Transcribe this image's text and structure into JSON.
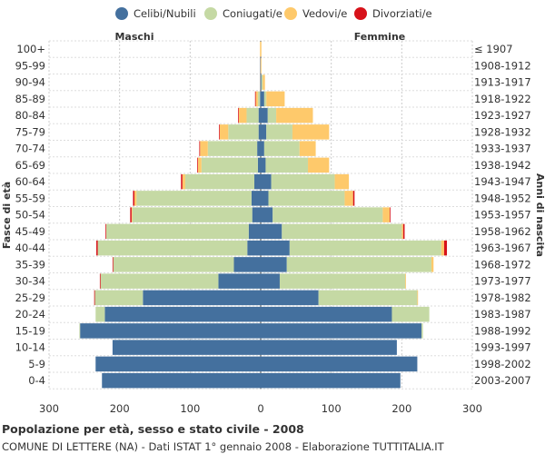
{
  "legend": [
    {
      "label": "Celibi/Nubili",
      "color": "#44709e"
    },
    {
      "label": "Coniugati/e",
      "color": "#c5d9a4"
    },
    {
      "label": "Vedovi/e",
      "color": "#fec96b"
    },
    {
      "label": "Divorziati/e",
      "color": "#d7121a"
    }
  ],
  "labels": {
    "male": "Maschi",
    "female": "Femmine",
    "ylabel_left": "Fasce di età",
    "ylabel_right": "Anni di nascita"
  },
  "footer": {
    "title": "Popolazione per età, sesso e stato civile - 2008",
    "subtitle": "COMUNE DI LETTERE (NA) - Dati ISTAT 1° gennaio 2008 - Elaborazione TUTTITALIA.IT"
  },
  "chart_data": {
    "type": "bar",
    "orientation": "horizontal-population-pyramid",
    "title": "Popolazione per età, sesso e stato civile - 2008",
    "xlim": [
      -300,
      300
    ],
    "xticks": [
      {
        "value": -300,
        "label": "300"
      },
      {
        "value": -200,
        "label": "200"
      },
      {
        "value": -100,
        "label": "100"
      },
      {
        "value": 0,
        "label": "0"
      },
      {
        "value": 100,
        "label": "100"
      },
      {
        "value": 200,
        "label": "200"
      },
      {
        "value": 300,
        "label": "300"
      }
    ],
    "categories": [
      "100+",
      "95-99",
      "90-94",
      "85-89",
      "80-84",
      "75-79",
      "70-74",
      "65-69",
      "60-64",
      "55-59",
      "50-54",
      "45-49",
      "40-44",
      "35-39",
      "30-34",
      "25-29",
      "20-24",
      "15-19",
      "10-14",
      "5-9",
      "0-4"
    ],
    "birth_years": [
      "≤ 1907",
      "1908-1912",
      "1913-1917",
      "1918-1922",
      "1923-1927",
      "1928-1932",
      "1933-1937",
      "1938-1942",
      "1943-1947",
      "1948-1952",
      "1953-1957",
      "1958-1962",
      "1963-1967",
      "1968-1972",
      "1973-1977",
      "1978-1982",
      "1983-1987",
      "1988-1992",
      "1993-1997",
      "1998-2002",
      "2003-2007"
    ],
    "series_order": [
      "Celibi/Nubili",
      "Coniugati/e",
      "Vedovi/e",
      "Divorziati/e"
    ],
    "male": {
      "Celibi/Nubili": [
        0,
        0,
        0,
        1,
        3,
        3,
        5,
        4,
        9,
        13,
        12,
        17,
        19,
        38,
        60,
        167,
        221,
        256,
        210,
        234,
        225
      ],
      "Coniugati/e": [
        0,
        0,
        0,
        3,
        17,
        43,
        70,
        80,
        98,
        163,
        170,
        202,
        212,
        171,
        167,
        68,
        13,
        1,
        0,
        0,
        0
      ],
      "Vedovi/e": [
        1,
        0,
        0,
        3,
        11,
        12,
        11,
        5,
        4,
        3,
        1,
        0,
        0,
        0,
        0,
        0,
        0,
        0,
        0,
        0,
        0
      ],
      "Divorziati/e": [
        0,
        0,
        0,
        1,
        1,
        1,
        1,
        1,
        2,
        2,
        2,
        1,
        2,
        1,
        1,
        1,
        0,
        0,
        0,
        0,
        0
      ]
    },
    "female": {
      "Celibi/Nubili": [
        0,
        0,
        1,
        5,
        10,
        8,
        5,
        7,
        15,
        11,
        17,
        30,
        41,
        37,
        27,
        82,
        186,
        228,
        193,
        222,
        198
      ],
      "Coniugati/e": [
        0,
        0,
        2,
        3,
        12,
        37,
        50,
        60,
        90,
        108,
        156,
        170,
        215,
        205,
        178,
        140,
        53,
        2,
        0,
        0,
        0
      ],
      "Vedovi/e": [
        1,
        1,
        3,
        26,
        52,
        52,
        23,
        30,
        20,
        12,
        10,
        2,
        4,
        3,
        1,
        1,
        0,
        0,
        0,
        0,
        0
      ],
      "Divorziati/e": [
        0,
        0,
        0,
        0,
        0,
        0,
        0,
        0,
        0,
        2,
        1,
        2,
        4,
        0,
        0,
        0,
        0,
        0,
        0,
        0,
        0
      ]
    }
  }
}
